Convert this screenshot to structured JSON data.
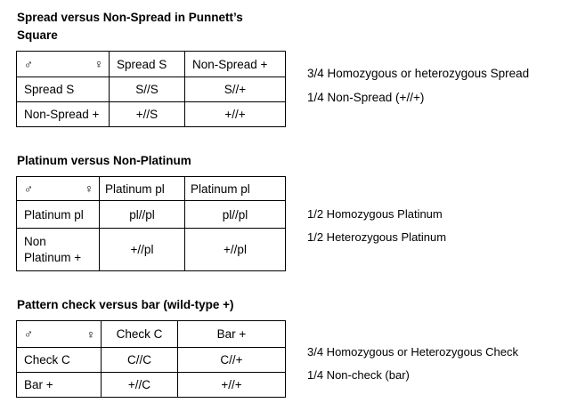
{
  "sections": [
    {
      "title": "Spread versus Non-Spread in Punnett’s Square",
      "male_symbol": "♂",
      "female_symbol": "♀",
      "columns": [
        "Spread S",
        "Non-Spread +"
      ],
      "rows": [
        {
          "label": "Spread S",
          "cells": [
            "S//S",
            "S//+"
          ]
        },
        {
          "label": "Non-Spread +",
          "cells": [
            "+//S",
            "+//+"
          ]
        }
      ],
      "notes": [
        "3/4 Homozygous or heterozygous Spread",
        "1/4 Non-Spread (+//+)"
      ]
    },
    {
      "title": "Platinum versus Non-Platinum",
      "male_symbol": "♂",
      "female_symbol": "♀",
      "columns": [
        "Platinum pl",
        "Platinum pl"
      ],
      "rows": [
        {
          "label": "Platinum pl",
          "cells": [
            "pl//pl",
            "pl//pl"
          ]
        },
        {
          "label": "Non Platinum +",
          "cells": [
            "+//pl",
            "+//pl"
          ]
        }
      ],
      "notes": [
        "1/2 Homozygous Platinum",
        "1/2 Heterozygous Platinum"
      ]
    },
    {
      "title": "Pattern check versus bar (wild-type +)",
      "male_symbol": "♂",
      "female_symbol": "♀",
      "columns": [
        "Check C",
        "Bar +"
      ],
      "rows": [
        {
          "label": "Check C",
          "cells": [
            "C//C",
            "C//+"
          ]
        },
        {
          "label": "Bar +",
          "cells": [
            "+//C",
            "+//+"
          ]
        }
      ],
      "notes": [
        "3/4 Homozygous or Heterozygous Check",
        "1/4 Non-check (bar)"
      ]
    }
  ]
}
